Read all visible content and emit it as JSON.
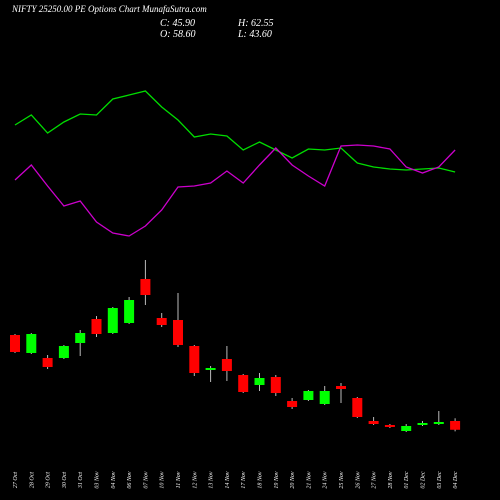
{
  "chart_data": {
    "type": "candlestick",
    "title": "NIFTY 25250.00 PE Options Chart MunafaSutra.com",
    "ohlc_labels": [
      "C: 45.90",
      "H: 62.55",
      "O: 58.60",
      "L: 43.60"
    ],
    "categories": [
      "27 Oct",
      "28 Oct",
      "29 Oct",
      "30 Oct",
      "31 Oct",
      "03 Nov",
      "04 Nov",
      "06 Nov",
      "07 Nov",
      "10 Nov",
      "11 Nov",
      "12 Nov",
      "13 Nov",
      "14 Nov",
      "17 Nov",
      "18 Nov",
      "19 Nov",
      "20 Nov",
      "21 Nov",
      "24 Nov",
      "25 Nov",
      "26 Nov",
      "27 Nov",
      "28 Nov",
      "01 Dec",
      "02 Dec",
      "03 Dec",
      "04 Dec"
    ],
    "open": [
      183.3,
      157.2,
      149.95,
      149.95,
      171.7,
      206.5,
      186.2,
      200.7,
      264.5,
      207.95,
      205.05,
      167.35,
      132.55,
      148.5,
      125.3,
      110.8,
      122.4,
      87.6,
      89.05,
      83.25,
      109.35,
      91.95,
      58.6,
      52.8,
      44.1,
      52.8,
      54.25,
      58.6
    ],
    "high": [
      184.75,
      186.2,
      154.3,
      168.8,
      190.55,
      210.85,
      223.9,
      238.4,
      292.05,
      215.2,
      244.2,
      168.8,
      138.35,
      167.35,
      126.75,
      128.2,
      125.3,
      91.95,
      103.55,
      109.35,
      113.7,
      93.4,
      64.4,
      54.25,
      54.25,
      58.6,
      73.1,
      62.55
    ],
    "low": [
      157.2,
      155.75,
      134.0,
      148.5,
      152.85,
      180.4,
      184.75,
      199.25,
      226.8,
      194.9,
      165.9,
      123.85,
      115.15,
      116.6,
      99.2,
      102.1,
      94.85,
      76.0,
      87.6,
      81.8,
      84.7,
      62.95,
      52.8,
      48.45,
      42.65,
      51.35,
      52.8,
      43.6
    ],
    "close": [
      158.65,
      184.75,
      136.9,
      167.35,
      186.2,
      184.75,
      222.45,
      234.05,
      241.3,
      197.8,
      168.8,
      128.2,
      135.45,
      131.1,
      100.65,
      120.95,
      99.2,
      78.9,
      102.1,
      102.1,
      105.0,
      64.4,
      54.25,
      49.9,
      51.35,
      55.7,
      57.15,
      45.9
    ],
    "up_color": "#00ff00",
    "down_color": "#ff0000",
    "lines": [
      {
        "color": "#00dd00",
        "values": [
          135,
          145,
          127,
          138,
          146,
          145,
          161,
          165,
          169,
          153,
          140,
          123,
          126,
          124,
          110,
          118,
          110,
          102,
          111,
          110,
          112,
          97,
          93,
          91,
          90,
          91,
          92,
          88
        ]
      },
      {
        "color": "#cc00cc",
        "values": [
          80,
          95,
          74,
          54,
          59,
          38,
          27,
          24,
          34,
          50,
          73,
          74,
          77,
          89,
          77,
          95,
          112,
          95,
          84,
          74,
          114,
          115,
          114,
          111,
          93,
          87,
          93,
          110
        ]
      }
    ]
  }
}
